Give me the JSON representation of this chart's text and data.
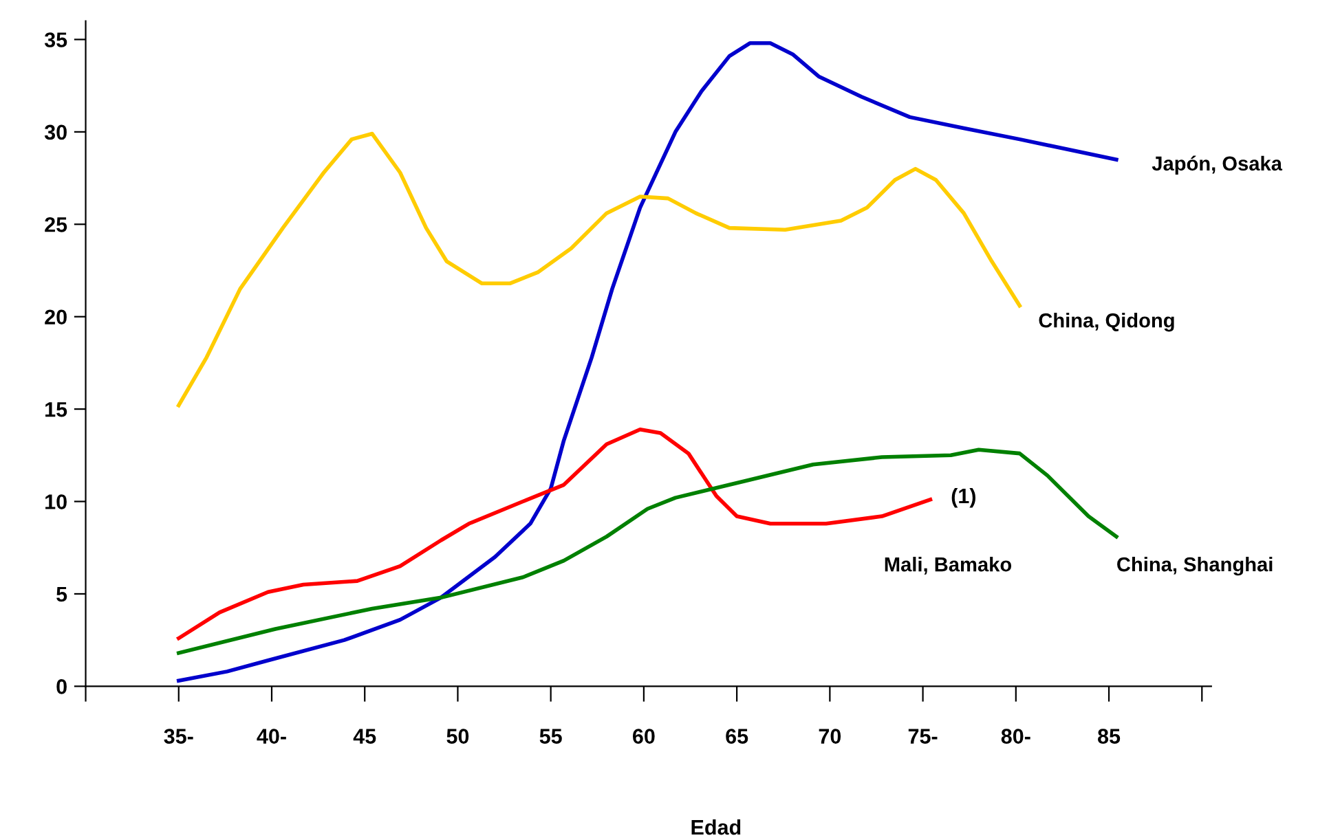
{
  "chart_data": {
    "type": "line",
    "xlabel": "Edad",
    "xlim": [
      30,
      90.5
    ],
    "xticks": [
      {
        "value": 30,
        "label": null
      },
      {
        "value": 35,
        "label": "35-"
      },
      {
        "value": 40,
        "label": "40-"
      },
      45,
      50,
      55,
      60,
      65,
      70,
      {
        "value": 75,
        "label": "75-"
      },
      {
        "value": 80,
        "label": "80-"
      },
      85,
      {
        "value": 90,
        "label": null
      }
    ],
    "ylim": [
      0,
      36
    ],
    "yticks": [
      0,
      5,
      10,
      15,
      20,
      25,
      30,
      35
    ],
    "grid": false,
    "legend": false,
    "marker": "none",
    "line_style": "solid",
    "series": [
      {
        "name": "Japón, Osaka",
        "color": "#0000cc",
        "x": [
          35,
          37.6,
          39.8,
          43.9,
          46.9,
          49.1,
          52,
          53.9,
          55,
          55.7,
          57.2,
          58.3,
          59.8,
          61.7,
          63.1,
          64.6,
          65.7,
          66.8,
          68,
          69.4,
          71.7,
          74.3,
          77.2,
          80.2,
          85.4
        ],
        "values": [
          0.3,
          0.8,
          1.4,
          2.5,
          3.6,
          4.8,
          7,
          8.8,
          10.7,
          13.3,
          17.8,
          21.5,
          25.9,
          30,
          32.2,
          34.1,
          34.8,
          34.8,
          34.2,
          33,
          31.9,
          30.8,
          30.2,
          29.6,
          28.5
        ]
      },
      {
        "name": "China, Qidong",
        "color": "#ffcc00",
        "x": [
          35,
          36.5,
          38.3,
          40.6,
          42.8,
          44.3,
          45.4,
          46.9,
          48.3,
          49.4,
          51.3,
          52.8,
          54.3,
          56.1,
          58,
          59.8,
          61.3,
          62.8,
          64.6,
          67.6,
          70.6,
          72,
          73.5,
          74.6,
          75.7,
          77.2,
          78.7,
          80.2
        ],
        "values": [
          15.2,
          17.8,
          21.5,
          24.8,
          27.8,
          29.6,
          29.9,
          27.8,
          24.8,
          23,
          21.8,
          21.8,
          22.4,
          23.7,
          25.6,
          26.5,
          26.4,
          25.6,
          24.8,
          24.7,
          25.2,
          25.9,
          27.4,
          28,
          27.4,
          25.6,
          23,
          20.6
        ]
      },
      {
        "name": "Mali, Bamako",
        "color": "#ff0000",
        "x": [
          35,
          37.2,
          39.8,
          41.7,
          44.6,
          46.9,
          49.1,
          50.6,
          53.5,
          55.7,
          58,
          59.8,
          60.9,
          62.4,
          63.9,
          65,
          66.8,
          69.8,
          72.8,
          75.4
        ],
        "values": [
          2.6,
          4,
          5.1,
          5.5,
          5.7,
          6.5,
          7.9,
          8.8,
          10,
          10.9,
          13.1,
          13.9,
          13.7,
          12.6,
          10.3,
          9.2,
          8.8,
          8.8,
          9.2,
          10.1
        ]
      },
      {
        "name": "China, Shanghai",
        "color": "#008000",
        "x": [
          35,
          40.2,
          45.4,
          49.1,
          53.5,
          55.7,
          58,
          60.2,
          61.7,
          65.4,
          69.1,
          72.8,
          76.5,
          78,
          80.2,
          81.7,
          83.9,
          85.4
        ],
        "values": [
          1.8,
          3.1,
          4.2,
          4.8,
          5.9,
          6.8,
          8.1,
          9.6,
          10.2,
          11.1,
          12,
          12.4,
          12.5,
          12.8,
          12.6,
          11.4,
          9.2,
          8.1
        ]
      }
    ],
    "annotations": [
      "(1)"
    ]
  }
}
